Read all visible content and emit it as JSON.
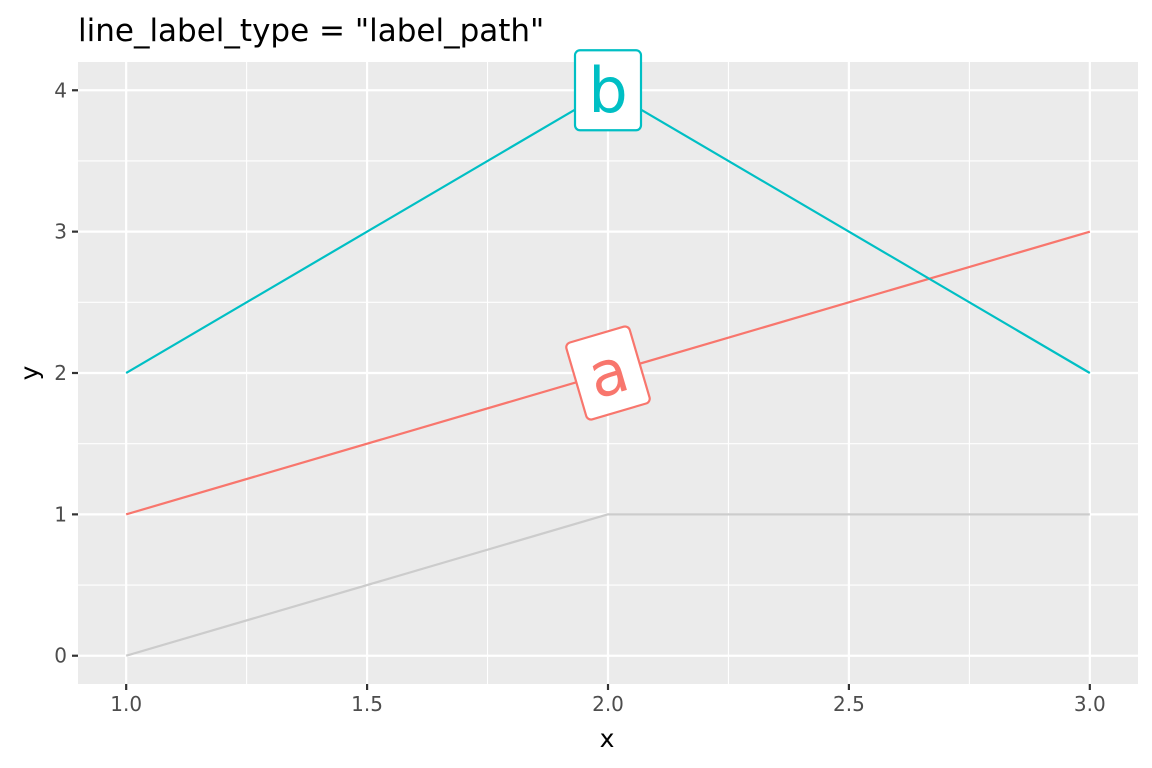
{
  "chart_data": {
    "type": "line",
    "title": "line_label_type = \"label_path\"",
    "xlabel": "x",
    "ylabel": "y",
    "xlim": [
      0.9,
      3.1
    ],
    "ylim": [
      -0.2,
      4.2
    ],
    "x_ticks": [
      1.0,
      1.5,
      2.0,
      2.5,
      3.0
    ],
    "x_tick_labels": [
      "1.0",
      "1.5",
      "2.0",
      "2.5",
      "3.0"
    ],
    "y_ticks": [
      0,
      1,
      2,
      3,
      4
    ],
    "y_tick_labels": [
      "0",
      "1",
      "2",
      "3",
      "4"
    ],
    "x_minor_ticks": [
      1.25,
      1.75,
      2.25,
      2.75
    ],
    "y_minor_ticks": [
      0.5,
      1.5,
      2.5,
      3.5
    ],
    "grid": true,
    "background": "#ebebeb",
    "series": [
      {
        "name": "a",
        "x": [
          1,
          2,
          3
        ],
        "y": [
          1,
          2,
          3
        ],
        "color": "#f8766d",
        "label_at": [
          2.0,
          2.0
        ]
      },
      {
        "name": "b",
        "x": [
          1,
          2,
          3
        ],
        "y": [
          2,
          4,
          2
        ],
        "color": "#00bfc4",
        "label_at": [
          2.0,
          4.0
        ]
      },
      {
        "x": [
          1,
          2,
          3
        ],
        "y": [
          0,
          1,
          1
        ],
        "color": "#cccccc"
      }
    ]
  }
}
